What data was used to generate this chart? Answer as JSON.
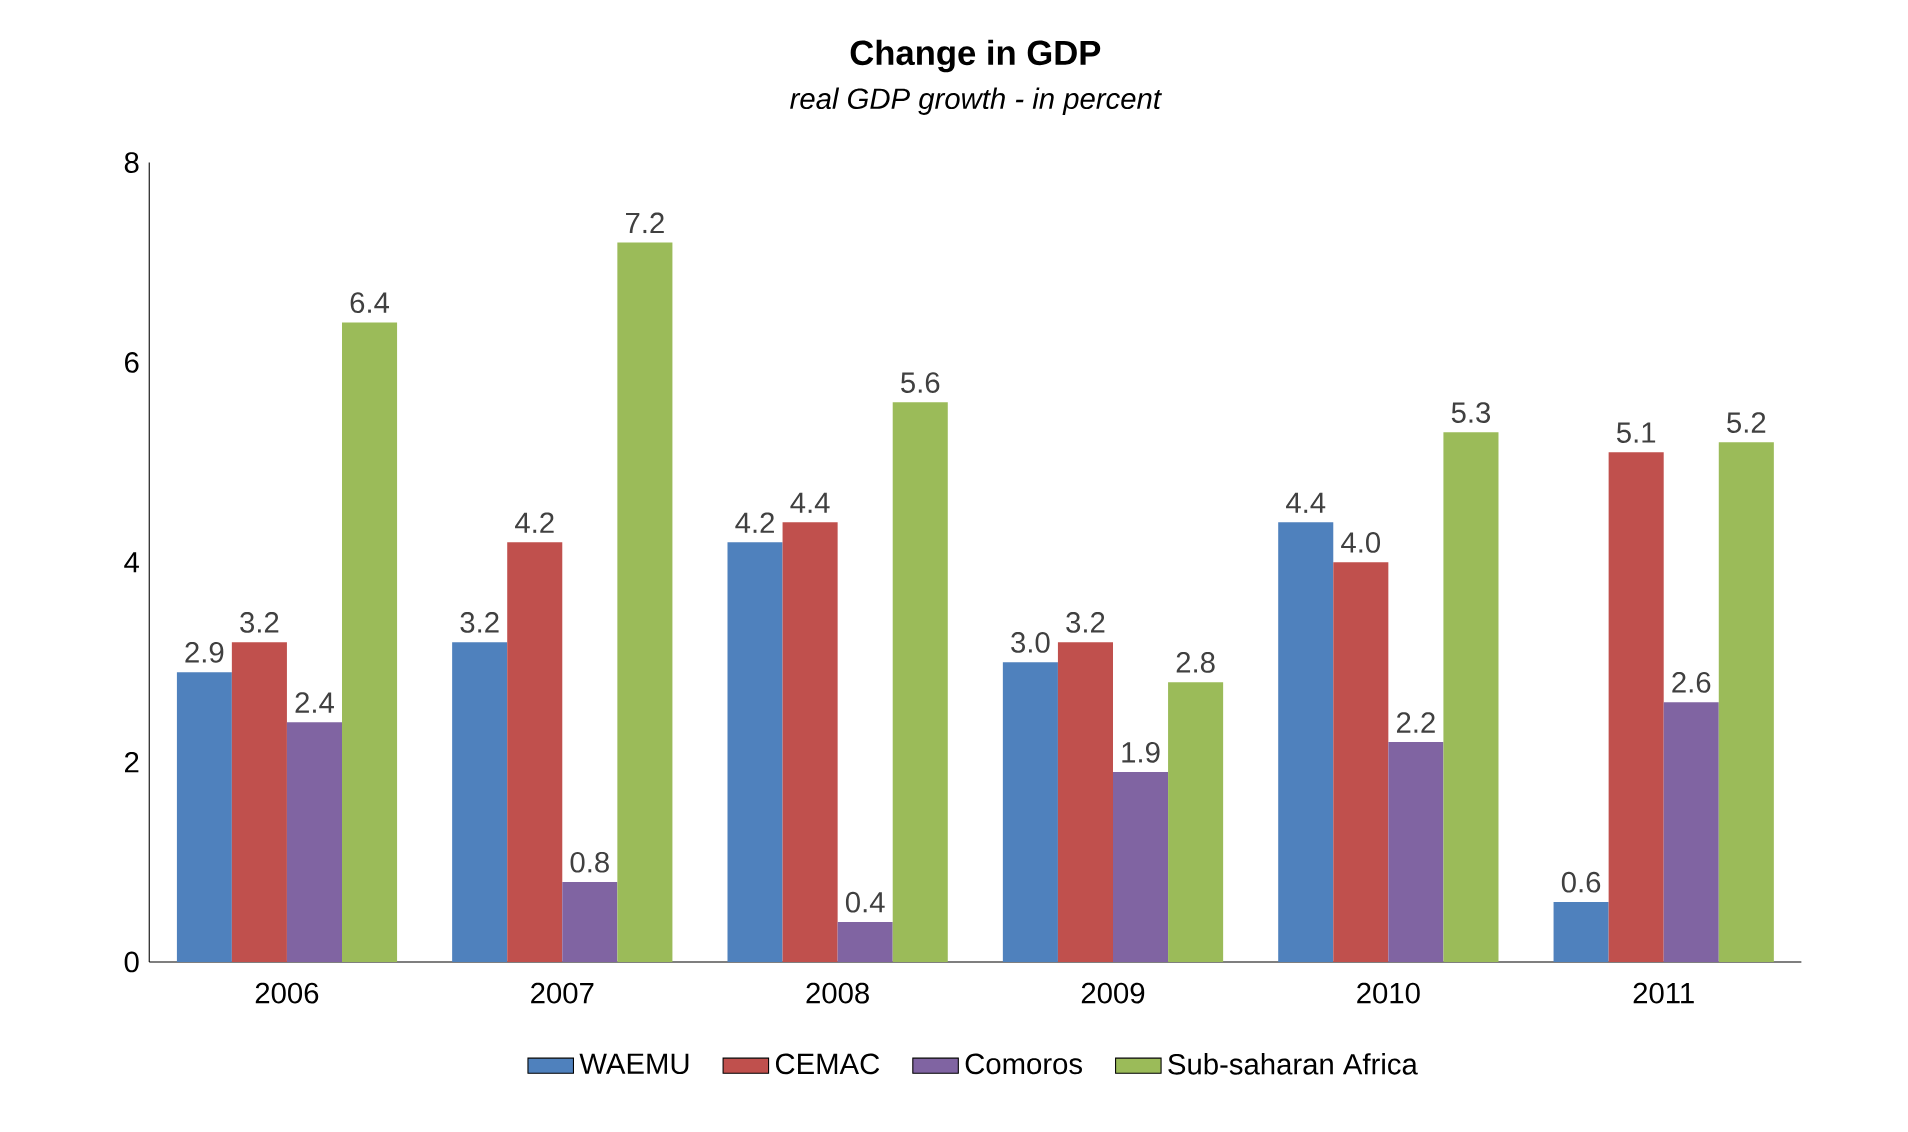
{
  "chart_data": {
    "type": "bar",
    "title": "Change in GDP",
    "subtitle": "real GDP growth - in percent",
    "categories": [
      "2006",
      "2007",
      "2008",
      "2009",
      "2010",
      "2011"
    ],
    "series": [
      {
        "name": "WAEMU",
        "color": "#4f81bd",
        "values": [
          2.9,
          3.2,
          4.2,
          3.0,
          4.4,
          0.6
        ],
        "value_labels": [
          "2.9",
          "3.2",
          "4.2",
          "3.0",
          "4.4",
          "0.6"
        ]
      },
      {
        "name": "CEMAC",
        "color": "#c0504d",
        "values": [
          3.2,
          4.2,
          4.4,
          3.2,
          4.0,
          5.1
        ],
        "value_labels": [
          "3.2",
          "4.2",
          "4.4",
          "3.2",
          "4.0",
          "5.1"
        ]
      },
      {
        "name": "Comoros",
        "color": "#8064a2",
        "values": [
          2.4,
          0.8,
          0.4,
          1.9,
          2.2,
          2.6
        ],
        "value_labels": [
          "2.4",
          "0.8",
          "0.4",
          "1.9",
          "2.2",
          "2.6"
        ]
      },
      {
        "name": "Sub-saharan Africa",
        "color": "#9bbb59",
        "values": [
          6.4,
          7.2,
          5.6,
          2.8,
          5.3,
          5.2
        ],
        "value_labels": [
          "6.4",
          "7.2",
          "5.6",
          "2.8",
          "5.3",
          "5.2"
        ]
      }
    ],
    "ylim": [
      0,
      8
    ],
    "yticks": [
      0,
      2,
      4,
      6,
      8
    ],
    "grid": false,
    "legend": "bottom"
  }
}
